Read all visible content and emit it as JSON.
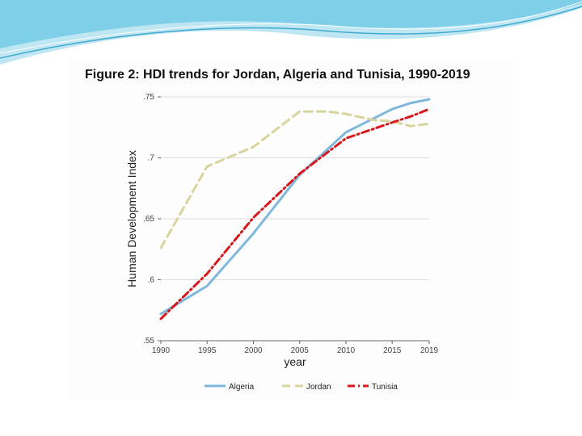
{
  "colors": {
    "banner_light": "#bfe6f3",
    "banner_mid": "#7fcfe8",
    "banner_dark": "#3fa9cf",
    "grid": "#dddddd",
    "axis": "#666666"
  },
  "chart_data": {
    "type": "line",
    "title": "Figure 2: HDI trends for Jordan, Algeria and Tunisia, 1990-2019",
    "xlabel": "year",
    "ylabel": "Human Development Index",
    "xlim": [
      1990,
      2019
    ],
    "ylim": [
      0.55,
      0.75
    ],
    "x_ticks": [
      1990,
      1995,
      2000,
      2005,
      2010,
      2015,
      2019
    ],
    "y_ticks": [
      0.55,
      0.6,
      0.65,
      0.7,
      0.75
    ],
    "y_tick_labels": [
      ".55",
      ".6",
      ".65",
      ".7",
      ".75"
    ],
    "grid": true,
    "legend_position": "bottom",
    "series": [
      {
        "name": "Algeria",
        "color": "#7fb7dd",
        "style": "solid",
        "x": [
          1990,
          1995,
          2000,
          2005,
          2010,
          2015,
          2017,
          2019
        ],
        "y": [
          0.572,
          0.595,
          0.638,
          0.686,
          0.721,
          0.74,
          0.745,
          0.748
        ]
      },
      {
        "name": "Jordan",
        "color": "#d8d49c",
        "style": "dashed",
        "x": [
          1990,
          1995,
          2000,
          2005,
          2008,
          2010,
          2013,
          2015,
          2017,
          2019
        ],
        "y": [
          0.626,
          0.693,
          0.709,
          0.738,
          0.738,
          0.736,
          0.731,
          0.73,
          0.726,
          0.728
        ]
      },
      {
        "name": "Tunisia",
        "color": "#d7191c",
        "style": "dashdot",
        "x": [
          1990,
          1995,
          2000,
          2005,
          2010,
          2015,
          2017,
          2019
        ],
        "y": [
          0.568,
          0.605,
          0.651,
          0.687,
          0.716,
          0.729,
          0.734,
          0.74
        ]
      }
    ]
  }
}
